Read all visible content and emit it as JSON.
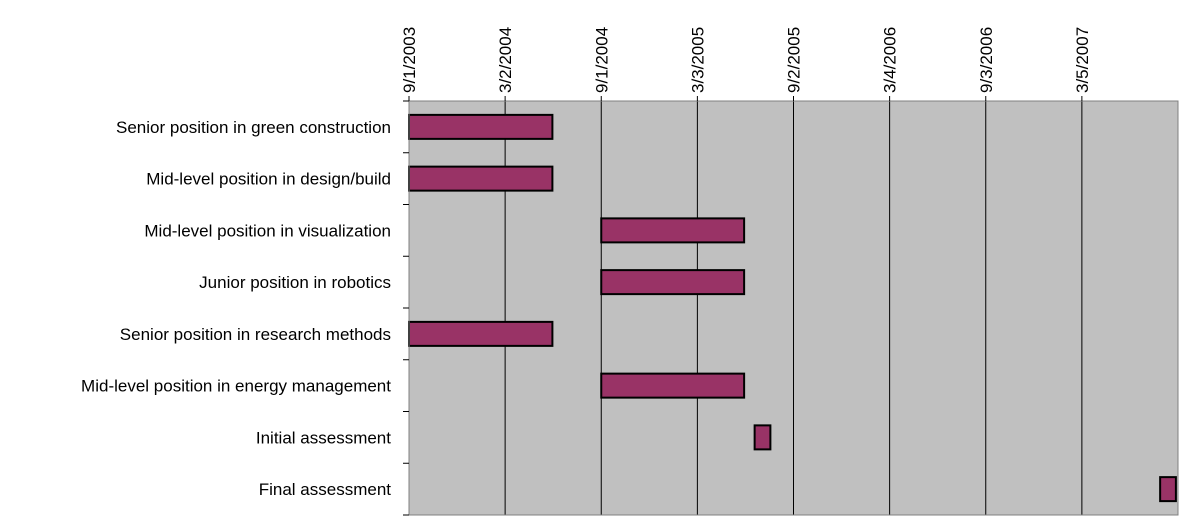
{
  "chart_data": {
    "type": "bar",
    "orientation": "horizontal",
    "subtype": "gantt",
    "title": "",
    "xlabel": "",
    "ylabel": "",
    "x_axis_position": "top",
    "x_tick_labels": [
      "9/1/2003",
      "3/2/2004",
      "9/1/2004",
      "3/3/2005",
      "9/2/2005",
      "3/4/2006",
      "9/3/2006",
      "3/5/2007"
    ],
    "x_ticks": [
      "2003-09-01",
      "2004-03-02",
      "2004-09-01",
      "2005-03-03",
      "2005-09-02",
      "2006-03-04",
      "2006-09-03",
      "2007-03-05"
    ],
    "xlim": [
      "2003-09-01",
      "2007-09-04"
    ],
    "categories": [
      "Senior position in green construction",
      "Mid-level position in design/build",
      "Mid-level position in visualization",
      "Junior position in robotics",
      "Senior position in research methods",
      "Mid-level position in energy management",
      "Initial assessment",
      "Final assessment"
    ],
    "tasks": [
      {
        "start": "2003-09-01",
        "end": "2004-05-31"
      },
      {
        "start": "2003-09-01",
        "end": "2004-05-31"
      },
      {
        "start": "2004-09-01",
        "end": "2005-05-31"
      },
      {
        "start": "2004-09-01",
        "end": "2005-05-31"
      },
      {
        "start": "2003-09-01",
        "end": "2004-05-31"
      },
      {
        "start": "2004-09-01",
        "end": "2005-05-31"
      },
      {
        "start": "2005-06-20",
        "end": "2005-07-20"
      },
      {
        "start": "2007-08-01",
        "end": "2007-08-31"
      }
    ],
    "grid": true,
    "legend": "none",
    "colors": {
      "bar_fill": "#993366",
      "bar_stroke": "#000000",
      "plot_background": "#c0c0c0",
      "gridline": "#000000"
    }
  }
}
